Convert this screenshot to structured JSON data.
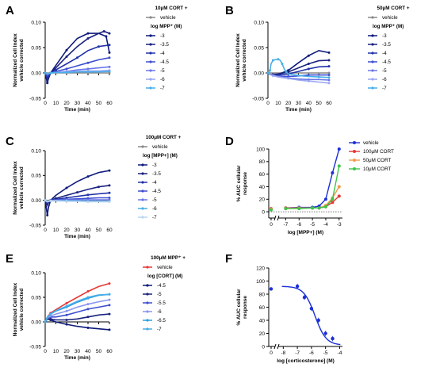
{
  "panel_labels": [
    "A",
    "B",
    "C",
    "D",
    "E",
    "F"
  ],
  "chart_data": [
    {
      "panel": "A",
      "type": "line",
      "legend_title": "10μM CORT +",
      "legend_subtitle": "log MPP⁺ (M)",
      "xlabel": "Time (min)",
      "ylabel": "Normalized Cell Index vehicle corrected",
      "xlim": [
        0,
        60
      ],
      "ylim": [
        -0.05,
        0.1
      ],
      "xticks": [
        0,
        10,
        20,
        30,
        40,
        50,
        60
      ],
      "yticks": [
        -0.05,
        0.0,
        0.05,
        0.1
      ],
      "ytick_labels": [
        "-0.05",
        "0.00",
        "0.05",
        "0.10"
      ],
      "series": [
        {
          "name": "vehicle",
          "color": "#888888",
          "x": [
            0,
            60
          ],
          "y": [
            0,
            0
          ]
        },
        {
          "name": "-3",
          "color": "#0d1a7a",
          "x": [
            0,
            1,
            2,
            3,
            5,
            10,
            20,
            30,
            40,
            50,
            57,
            60
          ],
          "y": [
            0,
            -0.01,
            -0.02,
            -0.012,
            0,
            0.015,
            0.045,
            0.068,
            0.078,
            0.078,
            0.072,
            0.04
          ]
        },
        {
          "name": "-3.5",
          "color": "#1a237e",
          "x": [
            0,
            1,
            2,
            3,
            5,
            10,
            20,
            30,
            40,
            50,
            55,
            60
          ],
          "y": [
            0,
            -0.01,
            -0.018,
            -0.01,
            0,
            0.01,
            0.032,
            0.052,
            0.068,
            0.078,
            0.082,
            0.078
          ]
        },
        {
          "name": "-4",
          "color": "#2233a8",
          "x": [
            0,
            2,
            3,
            5,
            10,
            20,
            30,
            40,
            50,
            60
          ],
          "y": [
            0,
            -0.01,
            -0.006,
            0,
            0.006,
            0.018,
            0.03,
            0.044,
            0.052,
            0.055
          ]
        },
        {
          "name": "-4.5",
          "color": "#3d4fd0",
          "x": [
            0,
            2,
            5,
            10,
            20,
            30,
            40,
            50,
            60
          ],
          "y": [
            0,
            -0.005,
            0,
            0.003,
            0.008,
            0.014,
            0.02,
            0.026,
            0.03
          ]
        },
        {
          "name": "-5",
          "color": "#6a78e8",
          "x": [
            0,
            2,
            5,
            10,
            20,
            30,
            40,
            50,
            60
          ],
          "y": [
            0,
            -0.003,
            0,
            0.001,
            0.003,
            0.006,
            0.008,
            0.01,
            0.012
          ]
        },
        {
          "name": "-6",
          "color": "#9aa6f0",
          "x": [
            0,
            2,
            5,
            10,
            20,
            30,
            40,
            50,
            60
          ],
          "y": [
            0,
            -0.002,
            0,
            0.001,
            0.002,
            0.003,
            0.004,
            0.004,
            0.005
          ]
        },
        {
          "name": "-7",
          "color": "#49aee8",
          "x": [
            0,
            2,
            5,
            10,
            20,
            30,
            40,
            50,
            60
          ],
          "y": [
            0,
            -0.002,
            0,
            0.001,
            0.001,
            0.002,
            0.002,
            0.002,
            0.003
          ]
        }
      ]
    },
    {
      "panel": "B",
      "type": "line",
      "legend_title": "50μM CORT +",
      "legend_subtitle": "log MPP⁺ (M)",
      "xlabel": "Time (min)",
      "ylabel": "Normalized Cell Index vehicle corrected",
      "xlim": [
        0,
        60
      ],
      "ylim": [
        -0.05,
        0.1
      ],
      "xticks": [
        0,
        10,
        20,
        30,
        40,
        50,
        60
      ],
      "yticks": [
        -0.05,
        0.0,
        0.05,
        0.1
      ],
      "ytick_labels": [
        "-0.05",
        "0.00",
        "0.05",
        "0.10"
      ],
      "series": [
        {
          "name": "vehicle",
          "color": "#888888",
          "x": [
            0,
            60
          ],
          "y": [
            0,
            0
          ]
        },
        {
          "name": "-3",
          "color": "#0d1a7a",
          "x": [
            0,
            2,
            5,
            10,
            20,
            30,
            40,
            50,
            60
          ],
          "y": [
            0,
            -0.003,
            -0.004,
            -0.003,
            0.005,
            0.02,
            0.034,
            0.044,
            0.04
          ]
        },
        {
          "name": "-3.5",
          "color": "#1a237e",
          "x": [
            0,
            2,
            5,
            10,
            20,
            30,
            40,
            50,
            60
          ],
          "y": [
            0,
            -0.003,
            -0.003,
            -0.002,
            0.002,
            0.01,
            0.018,
            0.024,
            0.025
          ]
        },
        {
          "name": "-4",
          "color": "#2233a8",
          "x": [
            0,
            2,
            5,
            10,
            20,
            30,
            40,
            50,
            60
          ],
          "y": [
            0,
            -0.003,
            -0.004,
            -0.004,
            -0.002,
            0.003,
            0.008,
            0.012,
            0.013
          ]
        },
        {
          "name": "-4.5",
          "color": "#3d4fd0",
          "x": [
            0,
            2,
            5,
            10,
            20,
            30,
            40,
            50,
            60
          ],
          "y": [
            0,
            -0.003,
            -0.005,
            -0.006,
            -0.007,
            -0.006,
            -0.004,
            -0.004,
            -0.004
          ]
        },
        {
          "name": "-5",
          "color": "#6a78e8",
          "x": [
            0,
            2,
            5,
            10,
            20,
            30,
            40,
            50,
            60
          ],
          "y": [
            0,
            -0.003,
            -0.005,
            -0.007,
            -0.01,
            -0.012,
            -0.013,
            -0.013,
            -0.014
          ]
        },
        {
          "name": "-6",
          "color": "#9aa6f0",
          "x": [
            0,
            2,
            5,
            10,
            20,
            30,
            40,
            50,
            60
          ],
          "y": [
            0,
            -0.003,
            -0.005,
            -0.008,
            -0.011,
            -0.014,
            -0.016,
            -0.018,
            -0.02
          ]
        },
        {
          "name": "-7",
          "color": "#49aee8",
          "x": [
            0,
            1,
            2,
            3,
            5,
            7,
            10,
            12,
            14,
            16,
            18,
            20,
            30,
            40,
            50,
            60
          ],
          "y": [
            0,
            -0.002,
            0.005,
            0.018,
            0.025,
            0.026,
            0.027,
            0.025,
            0.018,
            0.008,
            0.002,
            -0.002,
            -0.005,
            -0.007,
            -0.008,
            -0.009
          ]
        }
      ]
    },
    {
      "panel": "C",
      "type": "line",
      "legend_title": "100μM CORT +",
      "legend_subtitle": "log [MPP+] (M)",
      "xlabel": "Time (min)",
      "ylabel": "Normalized Cell Index vehicle corrected",
      "xlim": [
        0,
        60
      ],
      "ylim": [
        -0.05,
        0.1
      ],
      "xticks": [
        0,
        10,
        20,
        30,
        40,
        50,
        60
      ],
      "yticks": [
        -0.05,
        0.0,
        0.05,
        0.1
      ],
      "ytick_labels": [
        "-0.05",
        "0.00",
        "0.05",
        "0.10"
      ],
      "series": [
        {
          "name": "vehicle",
          "color": "#888888",
          "x": [
            0,
            60
          ],
          "y": [
            0,
            0
          ]
        },
        {
          "name": "-3",
          "color": "#0d1a7a",
          "x": [
            0,
            1,
            2,
            3,
            5,
            10,
            20,
            30,
            40,
            50,
            60
          ],
          "y": [
            0,
            -0.015,
            -0.03,
            -0.015,
            0,
            0.01,
            0.025,
            0.038,
            0.048,
            0.056,
            0.06
          ]
        },
        {
          "name": "-3.5",
          "color": "#1a237e",
          "x": [
            0,
            2,
            3,
            5,
            10,
            20,
            30,
            40,
            50,
            60
          ],
          "y": [
            0,
            -0.01,
            -0.004,
            0,
            0.004,
            0.01,
            0.016,
            0.022,
            0.027,
            0.03
          ]
        },
        {
          "name": "-4",
          "color": "#2233a8",
          "x": [
            0,
            2,
            5,
            10,
            20,
            30,
            40,
            50,
            60
          ],
          "y": [
            0,
            -0.006,
            0,
            0.002,
            0.005,
            0.008,
            0.011,
            0.013,
            0.015
          ]
        },
        {
          "name": "-4.5",
          "color": "#3d4fd0",
          "x": [
            0,
            2,
            5,
            10,
            20,
            30,
            40,
            50,
            60
          ],
          "y": [
            0,
            -0.004,
            0,
            0.001,
            0.002,
            0.003,
            0.004,
            0.005,
            0.005
          ]
        },
        {
          "name": "-5",
          "color": "#6a78e8",
          "x": [
            0,
            2,
            5,
            10,
            20,
            30,
            40,
            50,
            60
          ],
          "y": [
            0,
            -0.003,
            0,
            0,
            0.001,
            0.001,
            0.001,
            0.001,
            0.001
          ]
        },
        {
          "name": "-6",
          "color": "#49aee8",
          "x": [
            0,
            2,
            5,
            10,
            20,
            30,
            40,
            50,
            60
          ],
          "y": [
            0,
            -0.003,
            -0.001,
            -0.001,
            -0.001,
            -0.001,
            -0.002,
            -0.002,
            -0.002
          ]
        },
        {
          "name": "-7",
          "color": "#b8d4f0",
          "x": [
            0,
            2,
            5,
            10,
            20,
            30,
            40,
            50,
            60
          ],
          "y": [
            0,
            -0.003,
            -0.001,
            -0.001,
            -0.002,
            -0.002,
            -0.003,
            -0.003,
            -0.003
          ]
        }
      ]
    },
    {
      "panel": "D",
      "type": "scatter",
      "xlabel": "log [MPP+] (M)",
      "ylabel": "% AUC cellular response",
      "xlim": [
        -7.5,
        -2.75
      ],
      "ylim": [
        -10,
        100
      ],
      "xticks": [
        -7,
        -6,
        -5,
        -4,
        -3
      ],
      "yticks": [
        0,
        20,
        40,
        60,
        80,
        100
      ],
      "x_break_tick": "0",
      "series": [
        {
          "name": "vehicle",
          "color": "#1c2fd6",
          "x": [
            -7,
            -6,
            -5,
            -4.5,
            -4,
            -3.5,
            -3
          ],
          "y": [
            6,
            7,
            7,
            9,
            20,
            62,
            100
          ],
          "control": 4
        },
        {
          "name": "100μM CORT",
          "color": "#e53935",
          "x": [
            -7,
            -6,
            -5,
            -4.5,
            -4,
            -3.5,
            -3
          ],
          "y": [
            6,
            6,
            6,
            6,
            8,
            15,
            25
          ],
          "control": 5
        },
        {
          "name": "50μM CORT",
          "color": "#f29a4a",
          "x": [
            -7,
            -6,
            -5,
            -4.5,
            -4,
            -3.5,
            -3
          ],
          "y": [
            5,
            6,
            6,
            6,
            10,
            22,
            40
          ],
          "control": 4
        },
        {
          "name": "10μM CORT",
          "color": "#3ec44a",
          "x": [
            -7,
            -6,
            -5,
            -4.5,
            -4,
            -3.5,
            -3
          ],
          "y": [
            5,
            5,
            6,
            6,
            8,
            20,
            73
          ],
          "control": 3
        }
      ]
    },
    {
      "panel": "E",
      "type": "line",
      "legend_title": "100μM MPP⁺ +",
      "legend_subtitle": "log [CORT] (M)",
      "xlabel": "Time (min)",
      "ylabel": "Normalized Cell Index vehicle corrected",
      "xlim": [
        0,
        60
      ],
      "ylim": [
        -0.05,
        0.1
      ],
      "xticks": [
        0,
        10,
        20,
        30,
        40,
        50,
        60
      ],
      "yticks": [
        -0.05,
        0.0,
        0.05,
        0.1
      ],
      "ytick_labels": [
        "-0.05",
        "0.00",
        "0.05",
        "0.10"
      ],
      "series": [
        {
          "name": "vehicle",
          "color": "#e53935",
          "x": [
            0,
            2,
            5,
            10,
            20,
            30,
            40,
            50,
            60
          ],
          "y": [
            0,
            0.01,
            0.018,
            0.025,
            0.038,
            0.05,
            0.062,
            0.072,
            0.078
          ]
        },
        {
          "name": "-4.5",
          "color": "#0d1a7a",
          "x": [
            0,
            2,
            5,
            10,
            20,
            30,
            40,
            50,
            60
          ],
          "y": [
            0,
            0.006,
            0.004,
            0,
            -0.005,
            -0.009,
            -0.012,
            -0.014,
            -0.016
          ]
        },
        {
          "name": "-5",
          "color": "#1a237e",
          "x": [
            0,
            2,
            5,
            10,
            20,
            30,
            40,
            50,
            60
          ],
          "y": [
            0,
            0.006,
            0.006,
            0.004,
            0.004,
            0.006,
            0.01,
            0.014,
            0.016
          ]
        },
        {
          "name": "-5.5",
          "color": "#3d4fd0",
          "x": [
            0,
            2,
            5,
            10,
            20,
            30,
            40,
            50,
            60
          ],
          "y": [
            0,
            0.008,
            0.01,
            0.01,
            0.014,
            0.02,
            0.026,
            0.03,
            0.034
          ]
        },
        {
          "name": "-6",
          "color": "#8a96ee",
          "x": [
            0,
            2,
            5,
            10,
            20,
            30,
            40,
            50,
            60
          ],
          "y": [
            0,
            0.008,
            0.012,
            0.016,
            0.022,
            0.03,
            0.036,
            0.041,
            0.045
          ]
        },
        {
          "name": "-6.5",
          "color": "#2aa0e0",
          "x": [
            0,
            2,
            5,
            10,
            20,
            30,
            40,
            50,
            60
          ],
          "y": [
            0,
            0.01,
            0.016,
            0.022,
            0.03,
            0.04,
            0.048,
            0.054,
            0.056
          ]
        },
        {
          "name": "-7",
          "color": "#49aee8",
          "x": [
            0,
            2,
            5,
            10,
            20,
            30,
            40,
            50,
            60
          ],
          "y": [
            0,
            0.01,
            0.016,
            0.023,
            0.032,
            0.042,
            0.05,
            0.055,
            0.056
          ]
        }
      ]
    },
    {
      "panel": "F",
      "type": "scatter",
      "xlabel": "log [corticosterone] (M)",
      "ylabel": "% AUC cellular response",
      "xlim": [
        -8.3,
        -3.8
      ],
      "ylim": [
        0,
        120
      ],
      "xticks": [
        -8,
        -7,
        -6,
        -5,
        -4
      ],
      "yticks": [
        0,
        20,
        40,
        60,
        80,
        100,
        120
      ],
      "x_break_tick": "0",
      "series": [
        {
          "name": "",
          "color": "#1c2fd6",
          "x": [
            -7,
            -6.5,
            -6,
            -5.5,
            -5,
            -4.5
          ],
          "y": [
            92,
            75,
            58,
            40,
            20,
            12
          ],
          "control": 88
        }
      ],
      "fit": {
        "top": 92,
        "bottom": 2,
        "log_ic50": -5.75,
        "hill": -1.1
      }
    }
  ]
}
